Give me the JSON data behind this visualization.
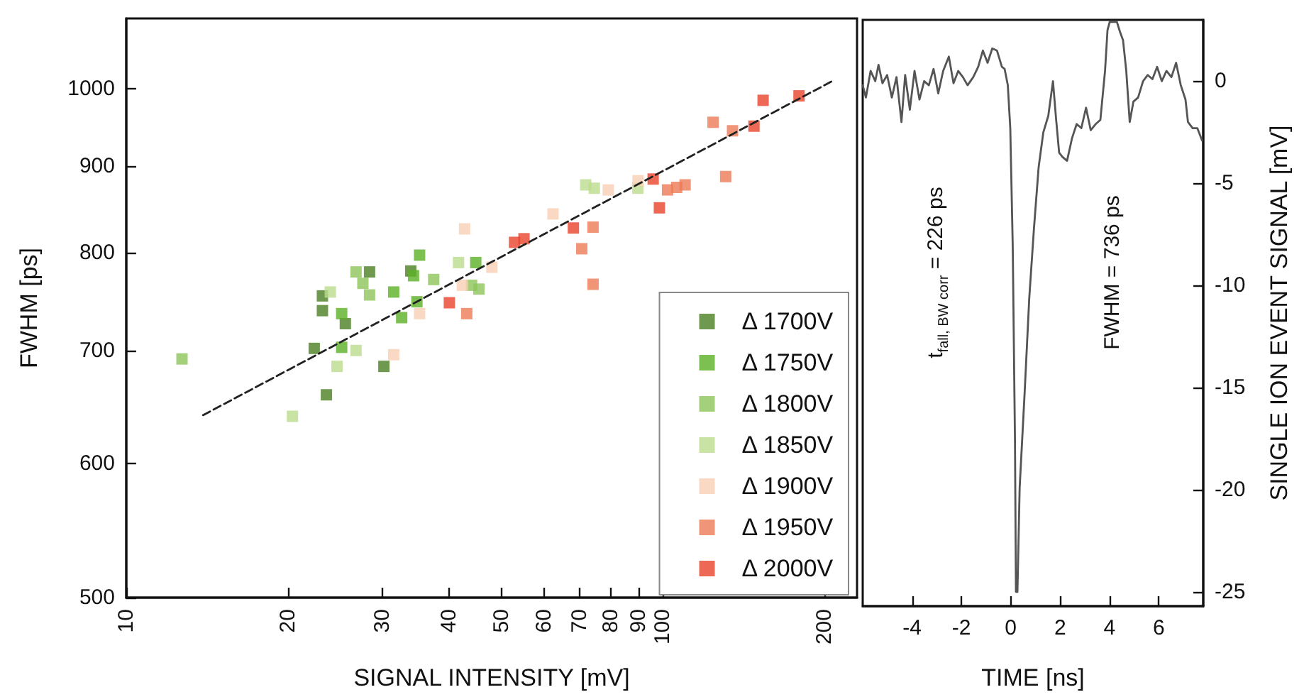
{
  "chart_data": [
    {
      "type": "scatter",
      "xlabel": "SIGNAL INTENSITY [mV]",
      "ylabel": "FWHM [ps]",
      "log": "xy",
      "xlim": [
        10,
        230
      ],
      "ylim": [
        500,
        1100
      ],
      "xticks": [
        10,
        20,
        30,
        40,
        50,
        60,
        70,
        80,
        90,
        100,
        200
      ],
      "yticks": [
        500,
        600,
        700,
        800,
        900,
        1000
      ],
      "legend": "bottom right",
      "grid": false,
      "marker": "square",
      "series": [
        {
          "name": "Δ 1700V",
          "color": "#4a7f23",
          "x": [
            23.2,
            23.2,
            25.6,
            22.4,
            28.4,
            33.9,
            30.2,
            23.6
          ],
          "values": [
            754,
            739,
            726,
            702,
            779,
            780,
            685,
            659
          ]
        },
        {
          "name": "Δ 1750V",
          "color": "#5cb027",
          "x": [
            25.2,
            25.2,
            31.5,
            32.6,
            35.2,
            34.3,
            34.8,
            44.8
          ],
          "values": [
            736,
            703,
            758,
            732,
            797,
            775,
            748,
            789
          ]
        },
        {
          "name": "Δ 1800V",
          "color": "#8fc45a",
          "x": [
            12.7,
            26.8,
            27.6,
            28.4,
            37.4,
            44.0,
            45.4
          ],
          "values": [
            692,
            779,
            767,
            755,
            771,
            765,
            761
          ]
        },
        {
          "name": "Δ 1850V",
          "color": "#bcdc8e",
          "x": [
            24.0,
            26.8,
            24.7,
            20.4,
            41.6,
            71.8,
            74.5,
            89.8
          ],
          "values": [
            758,
            700,
            685,
            640,
            789,
            877,
            873,
            873
          ]
        },
        {
          "name": "Δ 1900V",
          "color": "#f8cfb4",
          "x": [
            31.5,
            35.2,
            42.7,
            42.3,
            48.0,
            62.4,
            79.1,
            89.9
          ],
          "values": [
            696,
            736,
            826,
            765,
            784,
            843,
            871,
            882
          ]
        },
        {
          "name": "Δ 1950V",
          "color": "#ee7a58",
          "x": [
            43.1,
            74.1,
            70.6,
            74.1,
            102.0,
            106.1,
            110.0,
            124.0,
            134.8,
            130.9
          ],
          "values": [
            736,
            828,
            804,
            766,
            871,
            874,
            877,
            955,
            944,
            887
          ]
        },
        {
          "name": "Δ 2000V",
          "color": "#e8442a",
          "x": [
            40.0,
            52.9,
            55.1,
            68.1,
            95.9,
            98.5,
            147.8,
            153.7,
            179.3
          ],
          "values": [
            747,
            811,
            815,
            827,
            884,
            850,
            950,
            984,
            990
          ]
        },
        {
          "type": "line",
          "color": "#222222",
          "line_style": "dashed",
          "marker": "none",
          "x": [
            13.9,
            208
          ],
          "values": [
            641,
            1011
          ]
        }
      ]
    },
    {
      "type": "line",
      "xlabel": "TIME [ns]",
      "ylabel": "SINGLE ION EVENT SIGNAL [mV]",
      "xlim": [
        -6,
        7.8
      ],
      "ylim": [
        -25.7,
        3
      ],
      "xticks": [
        -4,
        -2,
        0,
        2,
        4,
        6
      ],
      "yticks": [
        -25,
        -20,
        -15,
        -10,
        -5,
        0
      ],
      "grid": false,
      "legend": false,
      "annotations": [
        "t$_{fall, BW corr}$ = 226 ps",
        "FWHM = 736 ps"
      ],
      "series": [
        {
          "color": "#555555",
          "x": [
            -6.0,
            -5.87,
            -5.68,
            -5.49,
            -5.36,
            -5.2,
            -5.01,
            -4.82,
            -4.63,
            -4.43,
            -4.28,
            -4.09,
            -3.9,
            -3.7,
            -3.51,
            -3.32,
            -3.13,
            -2.94,
            -2.74,
            -2.51,
            -2.32,
            -2.13,
            -1.94,
            -1.75,
            -1.52,
            -1.32,
            -1.13,
            -0.94,
            -0.75,
            -0.56,
            -0.36,
            -0.25,
            -0.12,
            -0.02,
            0.08,
            0.17,
            0.21,
            0.27,
            0.36,
            0.56,
            0.75,
            0.94,
            1.13,
            1.32,
            1.52,
            1.71,
            1.84,
            1.96,
            2.09,
            2.28,
            2.48,
            2.67,
            2.86,
            3.05,
            3.24,
            3.44,
            3.63,
            3.82,
            3.92,
            4.01,
            4.15,
            4.3,
            4.43,
            4.55,
            4.68,
            4.82,
            4.97,
            5.16,
            5.36,
            5.55,
            5.74,
            5.93,
            6.12,
            6.31,
            6.51,
            6.7,
            6.89,
            7.08,
            7.18,
            7.37,
            7.56,
            7.75
          ],
          "values": [
            -0.2,
            -0.8,
            0.5,
            0.0,
            0.8,
            -0.1,
            0.3,
            -0.8,
            0.2,
            -2.0,
            0.3,
            -1.4,
            0.5,
            -0.9,
            0.0,
            -0.2,
            0.6,
            -0.6,
            0.5,
            1.2,
            -0.1,
            0.5,
            0.2,
            -0.2,
            0.2,
            0.7,
            1.5,
            0.9,
            1.6,
            1.5,
            0.7,
            0.6,
            -0.2,
            -2.3,
            -8.1,
            -17.6,
            -25.0,
            -25.0,
            -19.9,
            -15.3,
            -10.6,
            -7.2,
            -4.2,
            -2.5,
            -1.7,
            0.0,
            -1.9,
            -3.5,
            -3.7,
            -3.9,
            -2.8,
            -2.1,
            -2.3,
            -1.3,
            -2.4,
            -2.1,
            -1.9,
            0.5,
            2.5,
            2.9,
            2.9,
            2.9,
            2.4,
            2.0,
            0.5,
            -2.0,
            -1.0,
            -0.8,
            0.0,
            0.3,
            0.1,
            0.7,
            0.0,
            0.5,
            0.2,
            0.9,
            -0.2,
            -0.9,
            -2.0,
            -2.3,
            -2.3,
            -2.9
          ]
        }
      ]
    }
  ]
}
